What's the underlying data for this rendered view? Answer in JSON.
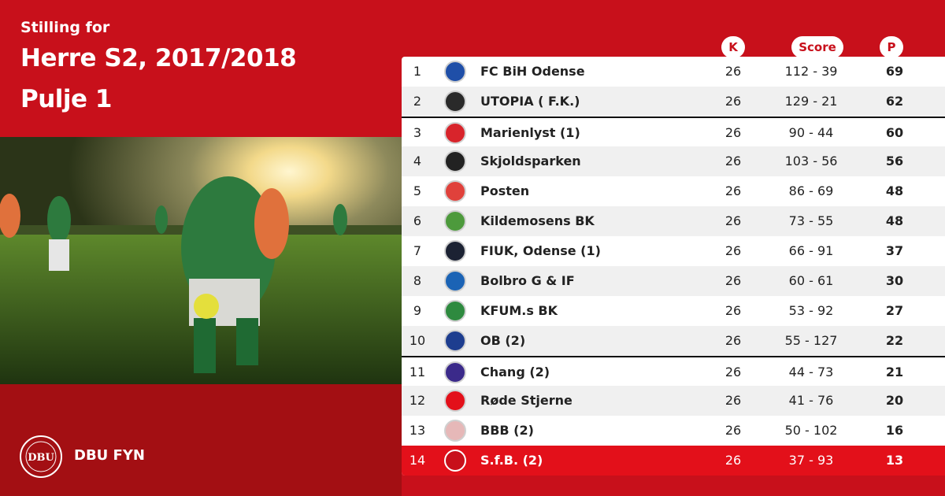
{
  "header": {
    "subtitle": "Stilling for",
    "title_line1": "Herre S2, 2017/2018",
    "title_line2": "Pulje 1"
  },
  "footer": {
    "org_name": "DBU FYN"
  },
  "columns": {
    "k": "K",
    "score": "Score",
    "p": "P"
  },
  "colors": {
    "brand_red": "#c8101b",
    "dark_red": "#a30f13",
    "highlight_red": "#e3101a"
  },
  "standings": [
    {
      "pos": "1",
      "team": "FC BiH Odense",
      "k": "26",
      "score": "112 - 39",
      "p": "69",
      "crest": "#1f4fa8"
    },
    {
      "pos": "2",
      "team": "UTOPIA  ( F.K.)",
      "k": "26",
      "score": "129 - 21",
      "p": "62",
      "crest": "#2a2a2a"
    },
    {
      "pos": "3",
      "team": "Marienlyst (1)",
      "k": "26",
      "score": "90 - 44",
      "p": "60",
      "crest": "#d8242b"
    },
    {
      "pos": "4",
      "team": "Skjoldsparken",
      "k": "26",
      "score": "103 - 56",
      "p": "56",
      "crest": "#222222"
    },
    {
      "pos": "5",
      "team": "Posten",
      "k": "26",
      "score": "86 - 69",
      "p": "48",
      "crest": "#e0413b"
    },
    {
      "pos": "6",
      "team": "Kildemosens BK",
      "k": "26",
      "score": "73 - 55",
      "p": "48",
      "crest": "#4d9a3c"
    },
    {
      "pos": "7",
      "team": "FIUK, Odense (1)",
      "k": "26",
      "score": "66 - 91",
      "p": "37",
      "crest": "#1c2233"
    },
    {
      "pos": "8",
      "team": "Bolbro G & IF",
      "k": "26",
      "score": "60 - 61",
      "p": "30",
      "crest": "#1b63b5"
    },
    {
      "pos": "9",
      "team": "KFUM.s BK",
      "k": "26",
      "score": "53 - 92",
      "p": "27",
      "crest": "#2e8a3f"
    },
    {
      "pos": "10",
      "team": "OB (2)",
      "k": "26",
      "score": "55 - 127",
      "p": "22",
      "crest": "#1d3d8f"
    },
    {
      "pos": "11",
      "team": "Chang  (2)",
      "k": "26",
      "score": "44 - 73",
      "p": "21",
      "crest": "#3b2a8a"
    },
    {
      "pos": "12",
      "team": "Røde Stjerne",
      "k": "26",
      "score": "41 - 76",
      "p": "20",
      "crest": "#e3101a"
    },
    {
      "pos": "13",
      "team": "BBB (2)",
      "k": "26",
      "score": "50 - 102",
      "p": "16",
      "crest": "#e6b8b8"
    },
    {
      "pos": "14",
      "team": "S.f.B. (2)",
      "k": "26",
      "score": "37 - 93",
      "p": "13",
      "crest": "#c8101b"
    }
  ]
}
